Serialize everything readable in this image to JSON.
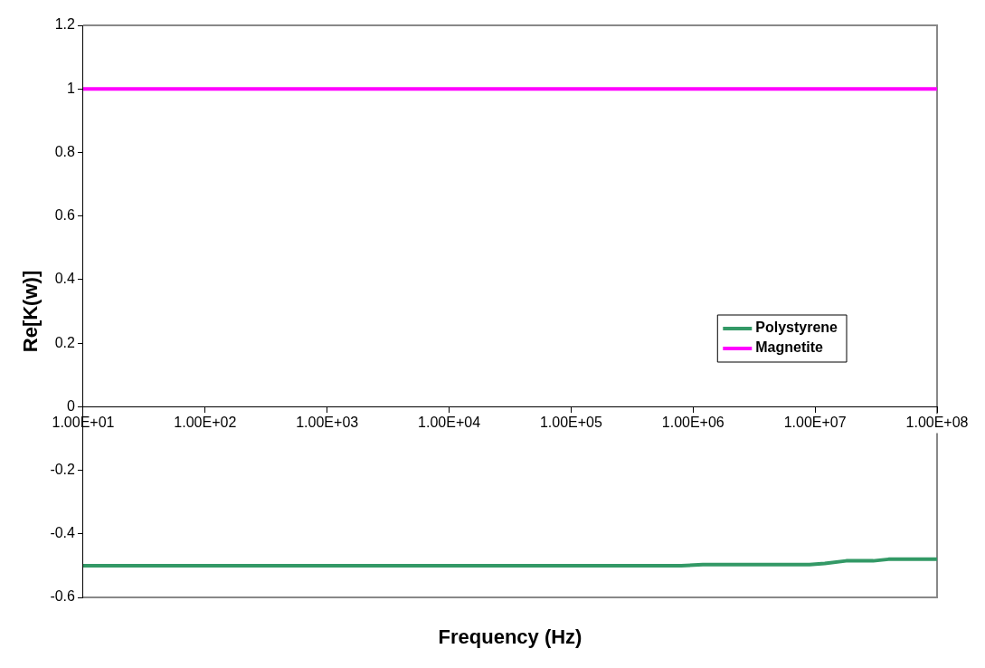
{
  "chart_data": {
    "type": "line",
    "xlabel": "Frequency (Hz)",
    "ylabel": "Re[K(w)]",
    "log": "x",
    "xlim": [
      10,
      100000000
    ],
    "xticks": [
      {
        "value": 10,
        "label": "1.00E+01"
      },
      {
        "value": 100,
        "label": "1.00E+02"
      },
      {
        "value": 1000,
        "label": "1.00E+03"
      },
      {
        "value": 10000,
        "label": "1.00E+04"
      },
      {
        "value": 100000,
        "label": "1.00E+05"
      },
      {
        "value": 1000000,
        "label": "1.00E+06"
      },
      {
        "value": 10000000,
        "label": "1.00E+07"
      },
      {
        "value": 100000000,
        "label": "1.00E+08"
      }
    ],
    "ylim": [
      -0.6,
      1.2
    ],
    "yticks": [
      -0.6,
      -0.4,
      -0.2,
      0,
      0.2,
      0.4,
      0.6,
      0.8,
      1,
      1.2
    ],
    "grid": false,
    "legend": "right",
    "marker": "none",
    "line_style": "solid",
    "series": [
      {
        "name": "Polystyrene",
        "color": "#339966",
        "x": [
          10,
          100000,
          800000,
          1200000,
          9000000,
          12000000,
          18000000,
          30000000,
          40000000,
          100000000
        ],
        "values": [
          -0.5,
          -0.5,
          -0.5,
          -0.497,
          -0.497,
          -0.493,
          -0.485,
          -0.485,
          -0.48,
          -0.48
        ]
      },
      {
        "name": "Magnetite",
        "color": "#ff00ff",
        "x": [
          10,
          100000000
        ],
        "values": [
          1,
          1
        ]
      }
    ]
  }
}
